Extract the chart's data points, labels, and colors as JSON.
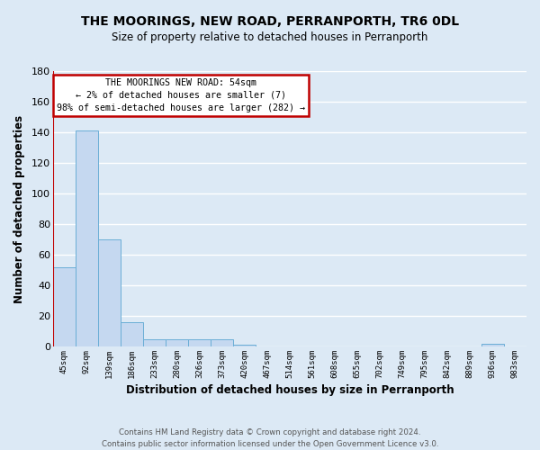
{
  "title": "THE MOORINGS, NEW ROAD, PERRANPORTH, TR6 0DL",
  "subtitle": "Size of property relative to detached houses in Perranporth",
  "xlabel": "Distribution of detached houses by size in Perranporth",
  "ylabel": "Number of detached properties",
  "footer_line1": "Contains HM Land Registry data © Crown copyright and database right 2024.",
  "footer_line2": "Contains public sector information licensed under the Open Government Licence v3.0.",
  "annotation_title": "THE MOORINGS NEW ROAD: 54sqm",
  "annotation_line2": "← 2% of detached houses are smaller (7)",
  "annotation_line3": "98% of semi-detached houses are larger (282) →",
  "bar_labels": [
    "45sqm",
    "92sqm",
    "139sqm",
    "186sqm",
    "233sqm",
    "280sqm",
    "326sqm",
    "373sqm",
    "420sqm",
    "467sqm",
    "514sqm",
    "561sqm",
    "608sqm",
    "655sqm",
    "702sqm",
    "749sqm",
    "795sqm",
    "842sqm",
    "889sqm",
    "936sqm",
    "983sqm"
  ],
  "bar_values": [
    52,
    141,
    70,
    16,
    5,
    5,
    5,
    5,
    1,
    0,
    0,
    0,
    0,
    0,
    0,
    0,
    0,
    0,
    0,
    2,
    0
  ],
  "bar_color": "#c5d8f0",
  "bar_edge_color": "#6aaed6",
  "highlight_color": "#c00000",
  "ylim": [
    0,
    180
  ],
  "yticks": [
    0,
    20,
    40,
    60,
    80,
    100,
    120,
    140,
    160,
    180
  ],
  "bg_color": "#dce9f5",
  "grid_color": "#ffffff",
  "annotation_box_color": "#ffffff",
  "annotation_box_edge": "#c00000",
  "title_fontsize": 10,
  "subtitle_fontsize": 9
}
